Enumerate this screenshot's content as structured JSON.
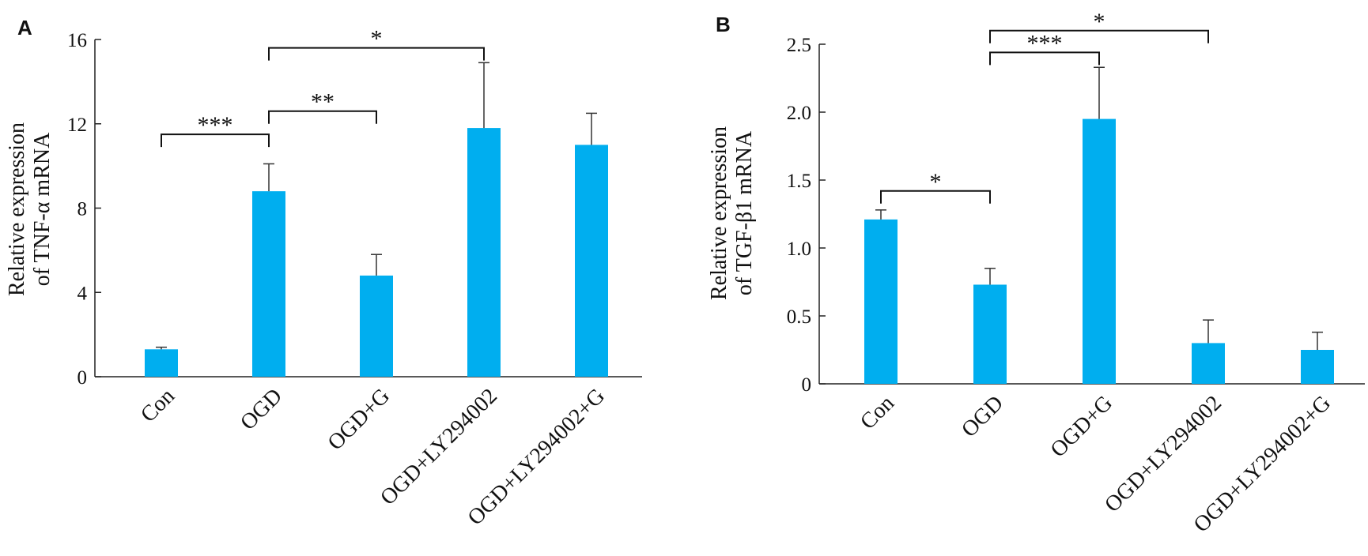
{
  "chart_data": [
    {
      "panel": "A",
      "type": "bar",
      "ylabel_lines": [
        "Relative expression",
        "of TNF-α mRNA"
      ],
      "categories": [
        "Con",
        "OGD",
        "OGD+G",
        "OGD+LY294002",
        "OGD+LY294002+G"
      ],
      "values": [
        1.3,
        8.8,
        4.8,
        11.8,
        11.0
      ],
      "errors": [
        0.1,
        1.3,
        1.0,
        3.1,
        1.5
      ],
      "ylim": [
        0,
        16
      ],
      "yticks": [
        0,
        4,
        8,
        12,
        16
      ],
      "ytick_labels": [
        "0",
        "4",
        "8",
        "12",
        "16"
      ],
      "bar_color": "#00AEEF",
      "significance": [
        {
          "from": 0,
          "to": 1,
          "y": 11.5,
          "label": "***"
        },
        {
          "from": 1,
          "to": 2,
          "y": 12.6,
          "label": "**"
        },
        {
          "from": 1,
          "to": 3,
          "y": 15.6,
          "label": "*"
        }
      ]
    },
    {
      "panel": "B",
      "type": "bar",
      "ylabel_lines": [
        "Relative expression",
        "of TGF-β1 mRNA"
      ],
      "categories": [
        "Con",
        "OGD",
        "OGD+G",
        "OGD+LY294002",
        "OGD+LY294002+G"
      ],
      "values": [
        1.21,
        0.73,
        1.95,
        0.3,
        0.25
      ],
      "errors": [
        0.07,
        0.12,
        0.38,
        0.17,
        0.13
      ],
      "ylim": [
        0,
        2.5
      ],
      "yticks": [
        0,
        0.5,
        1.0,
        1.5,
        2.0,
        2.5
      ],
      "ytick_labels": [
        "0",
        "0.5",
        "1.0",
        "1.5",
        "2.0",
        "2.5"
      ],
      "bar_color": "#00AEEF",
      "significance": [
        {
          "from": 0,
          "to": 1,
          "y": 1.42,
          "label": "*"
        },
        {
          "from": 1,
          "to": 2,
          "y": 2.44,
          "label": "***"
        },
        {
          "from": 1,
          "to": 3,
          "y": 2.6,
          "label": "*"
        }
      ]
    }
  ]
}
